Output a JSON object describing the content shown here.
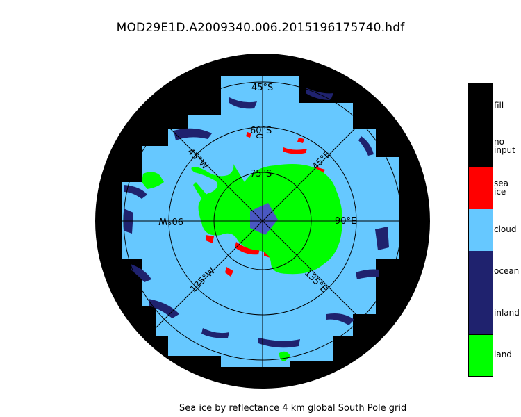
{
  "title": "MOD29E1D.A2009340.006.2015196175740.hdf",
  "caption": "Sea ice by reflectance 4 km global South Pole grid",
  "graticule_labels": {
    "lat45": "45°S",
    "lat60": "60°S",
    "lat75": "75°S",
    "lon0": "0",
    "lon45e": "45°E",
    "lon90e": "90°E",
    "lon135e": "135°E",
    "lon45w": "45°W",
    "lon90w": "90°W",
    "lon135w": "135°W"
  },
  "legend": [
    {
      "label": "fill",
      "color": "#000000"
    },
    {
      "label": "no\ninput",
      "color": "#000000"
    },
    {
      "label": "sea\nice",
      "color": "#ff0000"
    },
    {
      "label": "cloud",
      "color": "#66c8ff"
    },
    {
      "label": "ocean",
      "color": "#1f226e"
    },
    {
      "label": "inland",
      "color": "#1f226e"
    },
    {
      "label": "land",
      "color": "#00ff00"
    }
  ],
  "colors": {
    "background": "#000000",
    "cloud": "#66c8ff",
    "ocean": "#1f226e",
    "land": "#00ff00",
    "sea_ice": "#ff0000",
    "pole_marker": "#4a58c2"
  }
}
